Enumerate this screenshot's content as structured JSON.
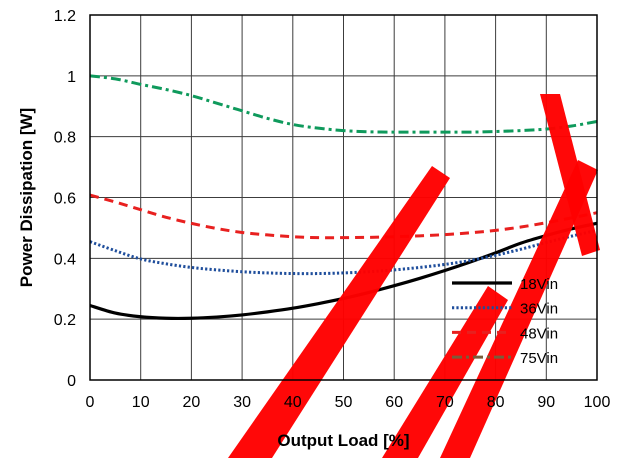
{
  "chart_data": {
    "type": "line",
    "title": "",
    "xlabel": "Output Load [%]",
    "ylabel": "Power Dissipation [W]",
    "xlim": [
      0,
      100
    ],
    "ylim": [
      0,
      1.2
    ],
    "xticks": [
      "0",
      "10",
      "20",
      "30",
      "40",
      "50",
      "60",
      "70",
      "80",
      "90",
      "100"
    ],
    "yticks": [
      "0",
      "0.2",
      "0.4",
      "0.6",
      "0.8",
      "1",
      "1.2"
    ],
    "grid": true,
    "legend_position": "bottom-right",
    "series": [
      {
        "name": "18Vin",
        "color": "#000000",
        "style": "solid",
        "x": [
          0,
          5,
          10,
          15,
          20,
          25,
          30,
          35,
          40,
          45,
          50,
          55,
          60,
          65,
          70,
          75,
          80,
          85,
          90,
          95,
          100
        ],
        "y": [
          0.245,
          0.22,
          0.208,
          0.203,
          0.203,
          0.207,
          0.214,
          0.224,
          0.236,
          0.251,
          0.268,
          0.288,
          0.31,
          0.334,
          0.36,
          0.388,
          0.418,
          0.45,
          0.475,
          0.497,
          0.515
        ]
      },
      {
        "name": "36Vin",
        "color": "#1f4e9c",
        "style": "dotted",
        "x": [
          0,
          5,
          10,
          15,
          20,
          25,
          30,
          35,
          40,
          45,
          50,
          55,
          60,
          65,
          70,
          75,
          80,
          85,
          90,
          95,
          100
        ],
        "y": [
          0.455,
          0.425,
          0.398,
          0.382,
          0.37,
          0.362,
          0.356,
          0.352,
          0.35,
          0.35,
          0.352,
          0.356,
          0.362,
          0.37,
          0.38,
          0.393,
          0.41,
          0.43,
          0.452,
          0.473,
          0.492
        ]
      },
      {
        "name": "48Vin",
        "color": "#e8201f",
        "style": "dashed",
        "x": [
          0,
          5,
          10,
          15,
          20,
          25,
          30,
          35,
          40,
          45,
          50,
          55,
          60,
          65,
          70,
          75,
          80,
          85,
          90,
          95,
          100
        ],
        "y": [
          0.608,
          0.585,
          0.56,
          0.535,
          0.515,
          0.498,
          0.485,
          0.477,
          0.471,
          0.468,
          0.468,
          0.469,
          0.471,
          0.474,
          0.478,
          0.484,
          0.492,
          0.503,
          0.517,
          0.533,
          0.55
        ]
      },
      {
        "name": "75Vin",
        "color": "#0f9a5c",
        "style": "dashdot",
        "x": [
          0,
          5,
          10,
          15,
          20,
          25,
          30,
          35,
          40,
          45,
          50,
          55,
          60,
          65,
          70,
          75,
          80,
          85,
          90,
          95,
          100
        ],
        "y": [
          1.0,
          0.99,
          0.972,
          0.955,
          0.935,
          0.91,
          0.885,
          0.86,
          0.84,
          0.828,
          0.82,
          0.816,
          0.815,
          0.815,
          0.815,
          0.815,
          0.817,
          0.82,
          0.825,
          0.835,
          0.85
        ]
      }
    ]
  }
}
